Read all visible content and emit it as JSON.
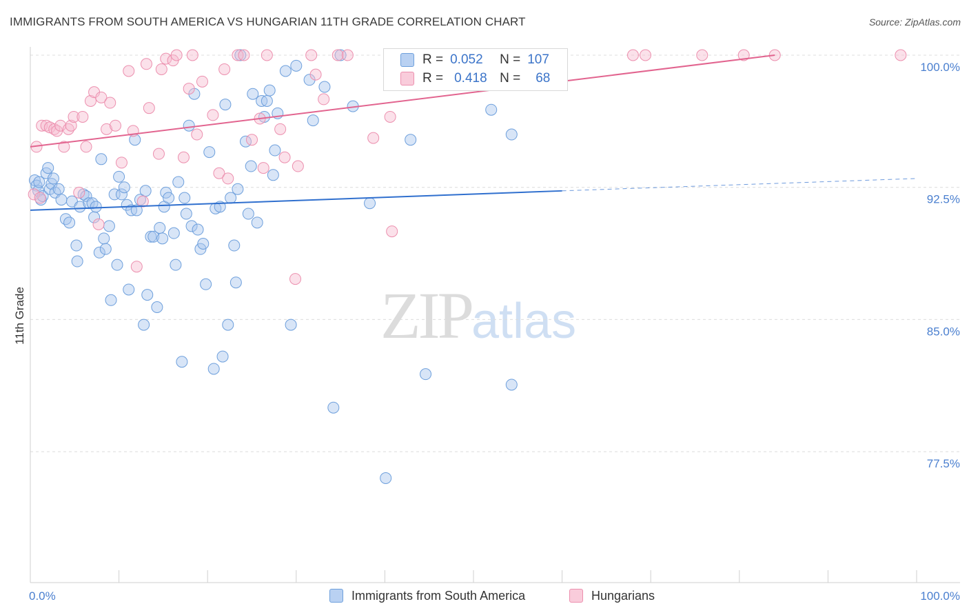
{
  "title": "IMMIGRANTS FROM SOUTH AMERICA VS HUNGARIAN 11TH GRADE CORRELATION CHART",
  "source": "Source: ZipAtlas.com",
  "watermark": {
    "zip": "ZIP",
    "atlas": "atlas"
  },
  "legend": {
    "r_label": "R =",
    "n_label": "N =",
    "rows": [
      {
        "r": "0.052",
        "n": "107"
      },
      {
        "r": "0.418",
        "n": "68"
      }
    ]
  },
  "colors": {
    "blue_fill": "#a9c6ee",
    "blue_stroke": "#6d9fdc",
    "blue_line": "#2f6fce",
    "pink_fill": "#f7bcd0",
    "pink_stroke": "#ec8fae",
    "pink_line": "#e2648f",
    "grid": "#dcdcdc",
    "tick_text": "#4a7fcf"
  },
  "chart_data": {
    "type": "scatter",
    "title": "IMMIGRANTS FROM SOUTH AMERICA VS HUNGARIAN 11TH GRADE CORRELATION CHART",
    "xlabel": "",
    "ylabel": "11th Grade",
    "xlim": [
      0,
      100
    ],
    "ylim": [
      70.0,
      101.5
    ],
    "x_tick_labels": [
      "0.0%",
      "100.0%"
    ],
    "y_ticks": [
      77.5,
      85.0,
      92.5,
      100.0
    ],
    "y_tick_labels": [
      "77.5%",
      "85.0%",
      "92.5%",
      "100.0%"
    ],
    "grid": true,
    "legend_position": "bottom",
    "series": [
      {
        "name": "Immigrants from South America",
        "r": 0.052,
        "n": 107,
        "trend": {
          "x0": 0,
          "y0": 91.2,
          "x1": 60,
          "y1": 92.3,
          "dash_to_x": 100,
          "dash_to_y": 93.0
        },
        "points": [
          [
            0.5,
            92.9
          ],
          [
            0.7,
            92.6
          ],
          [
            0.9,
            92.3
          ],
          [
            1.0,
            92.8
          ],
          [
            1.2,
            91.8
          ],
          [
            1.4,
            92.0
          ],
          [
            1.8,
            93.3
          ],
          [
            2.0,
            93.6
          ],
          [
            2.2,
            92.4
          ],
          [
            2.4,
            92.7
          ],
          [
            2.6,
            93.0
          ],
          [
            2.8,
            92.2
          ],
          [
            3.2,
            92.4
          ],
          [
            3.5,
            91.8
          ],
          [
            4.0,
            90.7
          ],
          [
            4.4,
            90.5
          ],
          [
            4.7,
            91.7
          ],
          [
            5.2,
            89.2
          ],
          [
            5.3,
            88.3
          ],
          [
            5.6,
            91.4
          ],
          [
            6.0,
            92.1
          ],
          [
            6.3,
            92.0
          ],
          [
            6.6,
            91.6
          ],
          [
            7.0,
            91.6
          ],
          [
            7.2,
            90.8
          ],
          [
            7.4,
            91.4
          ],
          [
            7.8,
            88.8
          ],
          [
            8.0,
            94.1
          ],
          [
            8.3,
            89.6
          ],
          [
            8.5,
            89.0
          ],
          [
            8.9,
            90.3
          ],
          [
            9.1,
            86.1
          ],
          [
            9.5,
            92.1
          ],
          [
            9.8,
            88.1
          ],
          [
            10.0,
            93.1
          ],
          [
            10.3,
            92.1
          ],
          [
            10.6,
            92.5
          ],
          [
            10.9,
            91.5
          ],
          [
            11.1,
            86.7
          ],
          [
            11.4,
            91.2
          ],
          [
            11.8,
            95.2
          ],
          [
            12.0,
            91.2
          ],
          [
            12.4,
            91.8
          ],
          [
            12.8,
            84.7
          ],
          [
            13.0,
            92.3
          ],
          [
            13.2,
            86.4
          ],
          [
            13.6,
            89.7
          ],
          [
            13.9,
            89.7
          ],
          [
            14.3,
            85.7
          ],
          [
            14.6,
            90.2
          ],
          [
            14.9,
            89.6
          ],
          [
            15.1,
            91.4
          ],
          [
            15.3,
            92.2
          ],
          [
            15.6,
            91.9
          ],
          [
            16.2,
            89.9
          ],
          [
            16.4,
            88.1
          ],
          [
            16.7,
            92.8
          ],
          [
            17.1,
            82.6
          ],
          [
            17.4,
            91.9
          ],
          [
            17.6,
            91.0
          ],
          [
            17.9,
            96.0
          ],
          [
            18.2,
            90.3
          ],
          [
            18.5,
            97.8
          ],
          [
            18.9,
            90.1
          ],
          [
            19.2,
            89.0
          ],
          [
            19.5,
            89.3
          ],
          [
            19.8,
            87.0
          ],
          [
            20.2,
            94.5
          ],
          [
            20.7,
            82.2
          ],
          [
            20.9,
            91.3
          ],
          [
            21.4,
            91.4
          ],
          [
            21.7,
            82.9
          ],
          [
            22.0,
            97.2
          ],
          [
            22.3,
            84.7
          ],
          [
            22.6,
            91.9
          ],
          [
            23.0,
            89.2
          ],
          [
            23.2,
            87.1
          ],
          [
            23.4,
            92.4
          ],
          [
            23.7,
            100.0
          ],
          [
            24.3,
            95.1
          ],
          [
            24.6,
            91.0
          ],
          [
            24.9,
            93.7
          ],
          [
            25.1,
            97.8
          ],
          [
            25.6,
            90.5
          ],
          [
            26.1,
            97.4
          ],
          [
            26.4,
            96.5
          ],
          [
            26.7,
            97.4
          ],
          [
            27.0,
            98.0
          ],
          [
            27.4,
            93.2
          ],
          [
            27.6,
            94.6
          ],
          [
            27.9,
            96.7
          ],
          [
            28.8,
            99.1
          ],
          [
            29.4,
            84.7
          ],
          [
            30.0,
            99.4
          ],
          [
            31.5,
            98.6
          ],
          [
            31.9,
            96.3
          ],
          [
            33.2,
            98.2
          ],
          [
            34.2,
            80.0
          ],
          [
            35.0,
            100.0
          ],
          [
            36.4,
            97.1
          ],
          [
            38.3,
            91.6
          ],
          [
            40.1,
            76.0
          ],
          [
            42.9,
            95.2
          ],
          [
            44.6,
            81.9
          ],
          [
            52.0,
            96.9
          ],
          [
            54.3,
            81.3
          ],
          [
            54.3,
            95.5
          ]
        ]
      },
      {
        "name": "Hungarians",
        "r": 0.418,
        "n": 68,
        "trend": {
          "x0": 0,
          "y0": 94.8,
          "x1": 84,
          "y1": 100.0
        },
        "points": [
          [
            0.4,
            92.1
          ],
          [
            0.7,
            94.8
          ],
          [
            1.1,
            91.9
          ],
          [
            1.3,
            96.0
          ],
          [
            1.8,
            96.0
          ],
          [
            2.2,
            95.9
          ],
          [
            2.7,
            95.8
          ],
          [
            3.0,
            95.7
          ],
          [
            3.4,
            96.0
          ],
          [
            3.8,
            94.8
          ],
          [
            4.3,
            95.8
          ],
          [
            4.6,
            96.0
          ],
          [
            4.9,
            96.5
          ],
          [
            5.5,
            92.2
          ],
          [
            5.9,
            96.5
          ],
          [
            6.3,
            94.8
          ],
          [
            6.8,
            97.4
          ],
          [
            7.2,
            97.9
          ],
          [
            7.7,
            90.4
          ],
          [
            8.0,
            97.6
          ],
          [
            8.6,
            95.8
          ],
          [
            9.0,
            97.3
          ],
          [
            9.6,
            96.0
          ],
          [
            10.3,
            93.9
          ],
          [
            11.1,
            99.1
          ],
          [
            11.6,
            95.7
          ],
          [
            12.0,
            88.0
          ],
          [
            12.7,
            91.7
          ],
          [
            13.4,
            97.0
          ],
          [
            14.5,
            94.4
          ],
          [
            14.8,
            99.2
          ],
          [
            15.3,
            99.8
          ],
          [
            16.1,
            99.7
          ],
          [
            16.5,
            100.0
          ],
          [
            17.3,
            94.2
          ],
          [
            17.9,
            98.1
          ],
          [
            18.3,
            100.0
          ],
          [
            18.8,
            95.5
          ],
          [
            19.4,
            98.5
          ],
          [
            20.6,
            96.6
          ],
          [
            21.3,
            93.3
          ],
          [
            21.9,
            99.2
          ],
          [
            22.3,
            93.0
          ],
          [
            23.4,
            100.0
          ],
          [
            24.1,
            100.0
          ],
          [
            25.0,
            95.2
          ],
          [
            25.9,
            96.4
          ],
          [
            26.3,
            93.6
          ],
          [
            26.7,
            100.0
          ],
          [
            28.2,
            95.8
          ],
          [
            28.7,
            94.2
          ],
          [
            29.9,
            87.3
          ],
          [
            30.2,
            93.7
          ],
          [
            31.7,
            100.0
          ],
          [
            32.2,
            98.9
          ],
          [
            33.1,
            97.5
          ],
          [
            34.7,
            100.0
          ],
          [
            35.8,
            100.0
          ],
          [
            38.7,
            95.3
          ],
          [
            40.6,
            96.5
          ],
          [
            40.8,
            90.0
          ],
          [
            68.0,
            100.0
          ],
          [
            69.4,
            100.0
          ],
          [
            75.8,
            100.0
          ],
          [
            80.5,
            100.0
          ],
          [
            84.0,
            100.0
          ],
          [
            98.2,
            100.0
          ],
          [
            13.1,
            99.5
          ]
        ]
      }
    ]
  }
}
